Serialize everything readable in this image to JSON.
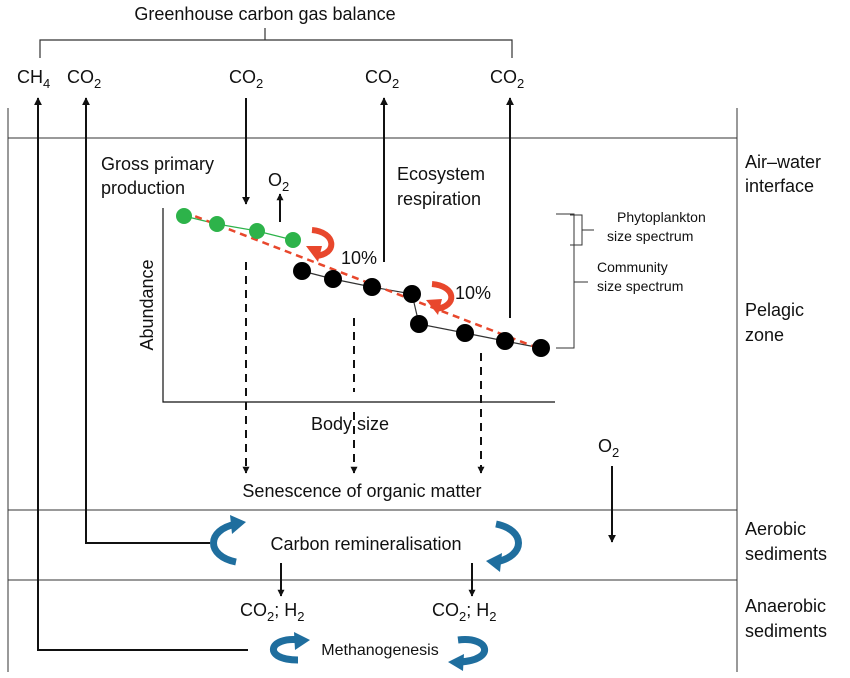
{
  "title": "Greenhouse carbon gas balance",
  "gases": {
    "ch4": "CH",
    "ch4_sub": "4",
    "co2": "CO",
    "co2_sub": "2",
    "o2": "O",
    "o2_sub": "2",
    "h2": "H",
    "h2_sub": "2",
    "sep": ";"
  },
  "labels": {
    "gross_primary_1": "Gross primary",
    "gross_primary_2": "production",
    "eco_resp_1": "Ecosystem",
    "eco_resp_2": "respiration",
    "percent": "10%",
    "abundance": "Abundance",
    "body_size": "Body size",
    "phyto_1": "Phytoplankton",
    "phyto_2": "size spectrum",
    "community_1": "Community",
    "community_2": "size spectrum",
    "senescence": "Senescence of organic matter",
    "carbon_remin": "Carbon remineralisation",
    "methanogenesis": "Methanogenesis"
  },
  "zones": {
    "air_water_1": "Air–water",
    "air_water_2": "interface",
    "pelagic_1": "Pelagic",
    "pelagic_2": "zone",
    "aerobic_1": "Aerobic",
    "aerobic_2": "sediments",
    "anaerobic_1": "Anaerobic",
    "anaerobic_2": "sediments"
  },
  "colors": {
    "phytoplankton": "#2db34a",
    "community": "#000000",
    "trend_line": "#e8472c",
    "transfer_arrow": "#e8472c",
    "cycle_arrow": "#1f6e9e"
  }
}
